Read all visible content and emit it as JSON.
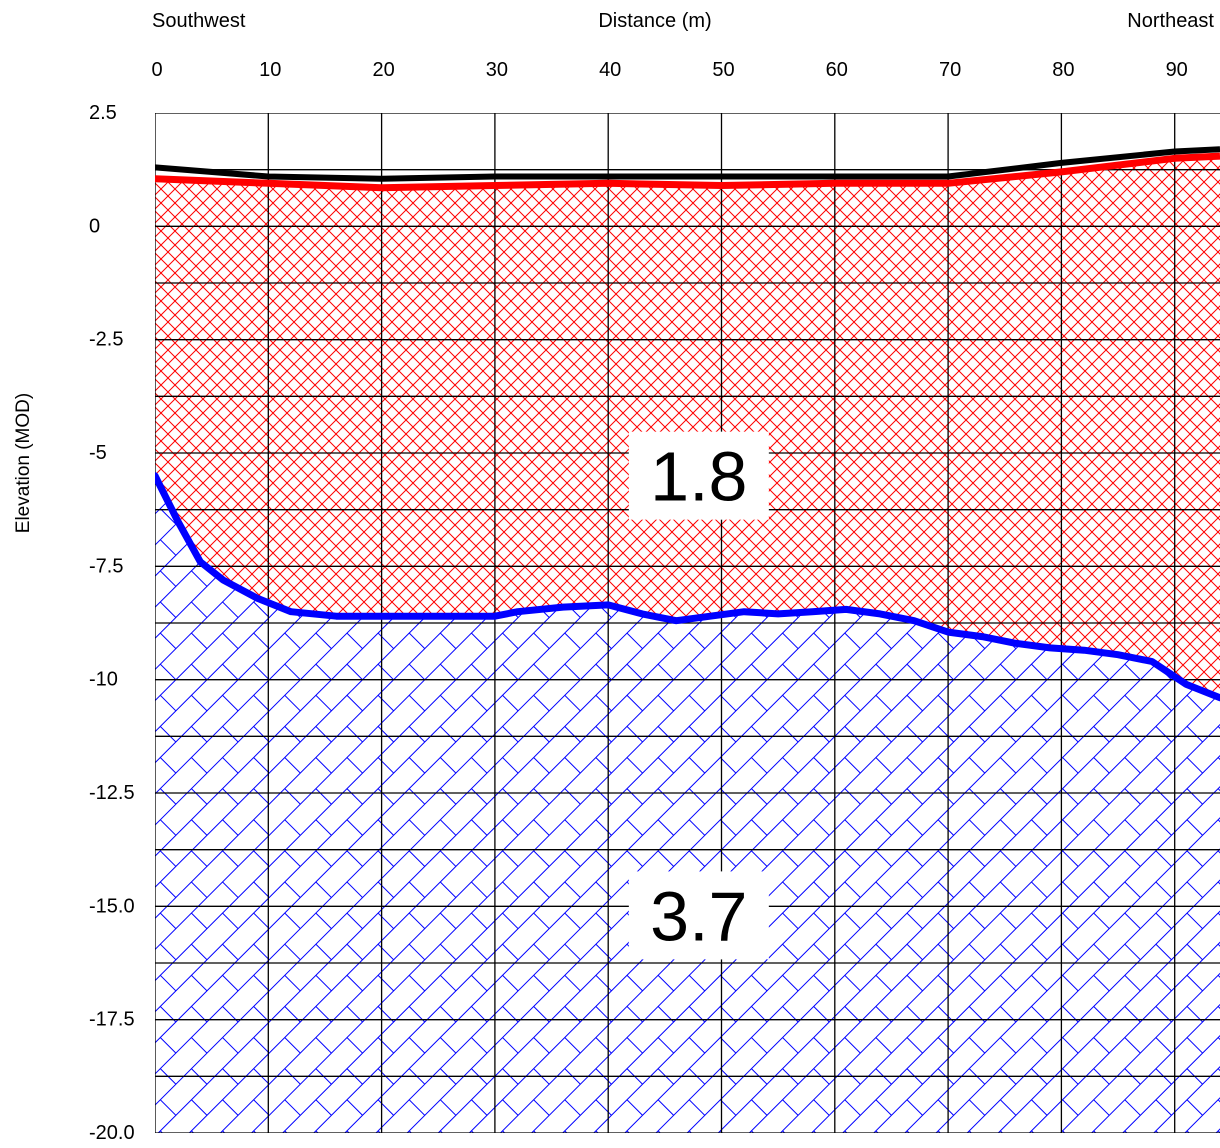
{
  "chart_data": {
    "type": "area",
    "xlabel": "Distance (m)",
    "ylabel": "Elevation (MOD)",
    "left_label": "Southwest",
    "right_label": "Northeast",
    "x_ticks": [
      0,
      10,
      20,
      30,
      40,
      50,
      60,
      70,
      80,
      90
    ],
    "y_ticks": [
      "2.5",
      "0",
      "-2.5",
      "-5",
      "-7.5",
      "-10",
      "-12.5",
      "-15.0",
      "-17.5",
      "-20.0"
    ],
    "y_tick_values": [
      2.5,
      0,
      -2.5,
      -5,
      -7.5,
      -10,
      -12.5,
      -15,
      -17.5,
      -20
    ],
    "xlim": [
      0,
      94
    ],
    "ylim": [
      -20,
      2.5
    ],
    "grid": true,
    "series": [
      {
        "role": "ground-surface",
        "color": "#000000",
        "x": [
          0,
          10,
          20,
          30,
          40,
          50,
          60,
          70,
          80,
          90,
          94
        ],
        "y": [
          1.3,
          1.1,
          1.05,
          1.1,
          1.1,
          1.1,
          1.1,
          1.1,
          1.4,
          1.65,
          1.7
        ]
      },
      {
        "role": "unit-top",
        "color": "#ff0000",
        "x": [
          0,
          10,
          20,
          30,
          40,
          50,
          60,
          70,
          80,
          90,
          94
        ],
        "y": [
          1.05,
          0.95,
          0.85,
          0.9,
          0.95,
          0.9,
          0.95,
          0.95,
          1.2,
          1.5,
          1.55
        ]
      },
      {
        "role": "unit-boundary",
        "color": "#0000ff",
        "x": [
          0,
          2,
          4,
          6,
          9,
          12,
          16,
          20,
          25,
          30,
          32,
          36,
          40,
          43,
          46,
          49,
          52,
          55,
          58,
          61,
          64,
          67,
          70,
          73,
          76,
          79,
          82,
          85,
          88,
          91,
          94
        ],
        "y": [
          -5.5,
          -6.5,
          -7.4,
          -7.8,
          -8.2,
          -8.5,
          -8.6,
          -8.6,
          -8.6,
          -8.6,
          -8.5,
          -8.4,
          -8.35,
          -8.55,
          -8.7,
          -8.6,
          -8.5,
          -8.55,
          -8.5,
          -8.45,
          -8.55,
          -8.7,
          -8.95,
          -9.05,
          -9.2,
          -9.3,
          -9.35,
          -9.45,
          -9.6,
          -10.1,
          -10.4
        ]
      }
    ],
    "units": [
      {
        "label": "1.8",
        "color": "#ff0000",
        "pattern": "crosshatch",
        "x": 48,
        "y": -5.5
      },
      {
        "label": "3.7",
        "color": "#0000ff",
        "pattern": "brick",
        "x": 48,
        "y": -15.2
      }
    ]
  }
}
